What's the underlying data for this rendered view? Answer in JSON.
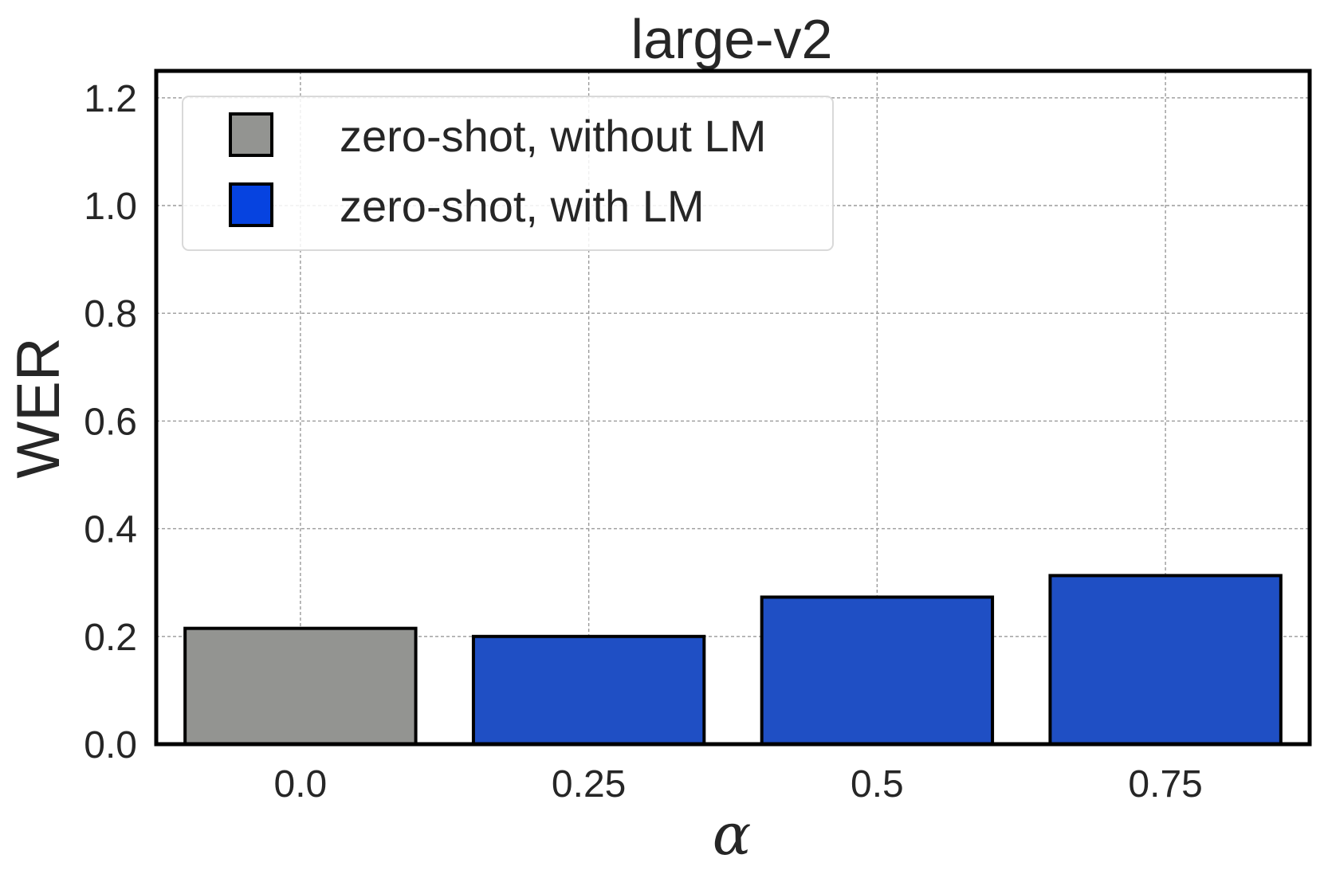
{
  "chart_data": {
    "type": "bar",
    "title": "large-v2",
    "xlabel": "α",
    "ylabel": "WER",
    "categories": [
      "0.0",
      "0.25",
      "0.5",
      "0.75"
    ],
    "values": [
      0.215,
      0.2,
      0.273,
      0.313
    ],
    "bar_series": [
      "zero-shot, without LM",
      "zero-shot, with LM",
      "zero-shot, with LM",
      "zero-shot, with LM"
    ],
    "series": [
      {
        "name": "zero-shot, without LM",
        "color": "#939491",
        "legend_color": "#939491"
      },
      {
        "name": "zero-shot, with LM",
        "color": "#1f4fc4",
        "legend_color": "#0643e0"
      }
    ],
    "ylim": [
      0,
      1.25
    ],
    "yticks": [
      "0.0",
      "0.2",
      "0.4",
      "0.6",
      "0.8",
      "1.0",
      "1.2"
    ],
    "grid": true,
    "legend_position": "top-left"
  }
}
